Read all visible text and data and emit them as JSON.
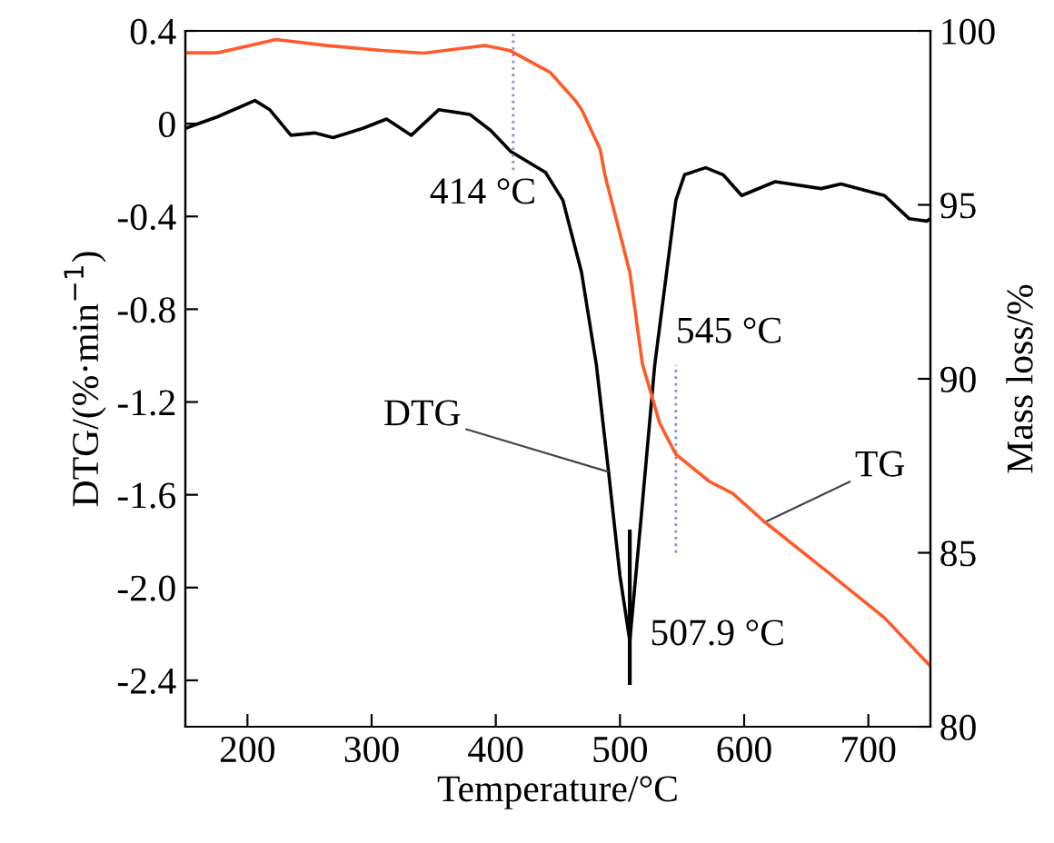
{
  "chart_data": {
    "type": "line",
    "xlabel": "Temperature/°C",
    "ylabel": "DTG/(%·min$^{−1}$)",
    "y2label": "Mass loss/%",
    "xlim": [
      150,
      750
    ],
    "xticks": [
      200,
      300,
      400,
      500,
      600,
      700
    ],
    "ylim": [
      -2.6,
      0.4
    ],
    "yticks": [
      {
        "value": 0.4,
        "label": "0.4"
      },
      0,
      {
        "value": -0.4,
        "label": "-0.4"
      },
      {
        "value": -0.8,
        "label": "-0.8"
      },
      {
        "value": -1.2,
        "label": "-1.2"
      },
      {
        "value": -1.6,
        "label": "-1.6"
      },
      {
        "value": -2.0,
        "label": "-2.0"
      },
      {
        "value": -2.4,
        "label": "-2.4"
      }
    ],
    "y2lim": [
      80,
      100
    ],
    "y2ticks": [
      80,
      85,
      90,
      95,
      100
    ],
    "grid": false,
    "legend": false,
    "marker": "none",
    "line_style": "solid",
    "series": [
      {
        "color": "#000000",
        "x": [
          150,
          176,
          206,
          218,
          235,
          254,
          269,
          293,
          312,
          332,
          354,
          379,
          396,
          412,
          440,
          454,
          469,
          481,
          491,
          500,
          507.9,
          517,
          528,
          545,
          552,
          569,
          583,
          598,
          625,
          662,
          678,
          713,
          733,
          747,
          750
        ],
        "values": [
          -0.02,
          0.03,
          0.1,
          0.06,
          -0.05,
          -0.04,
          -0.06,
          -0.02,
          0.02,
          -0.05,
          0.06,
          0.04,
          -0.03,
          -0.12,
          -0.21,
          -0.33,
          -0.64,
          -1.04,
          -1.51,
          -1.95,
          -2.23,
          -1.7,
          -1.04,
          -0.33,
          -0.22,
          -0.19,
          -0.22,
          -0.31,
          -0.25,
          -0.28,
          -0.26,
          -0.31,
          -0.41,
          -0.42,
          -0.41
        ]
      },
      {
        "color": "#ff5a28",
        "axis": "y2",
        "x": [
          150,
          176,
          223,
          264,
          308,
          342,
          391,
          411,
          444,
          464,
          469,
          484,
          488,
          508,
          518,
          532,
          545,
          572,
          591,
          616,
          664,
          713,
          750
        ],
        "values": [
          99.37,
          99.37,
          99.75,
          99.58,
          99.44,
          99.36,
          99.58,
          99.44,
          98.8,
          98.0,
          97.75,
          96.6,
          95.84,
          93.05,
          90.44,
          88.72,
          87.83,
          87.05,
          86.7,
          85.9,
          84.54,
          83.13,
          81.74
        ]
      }
    ],
    "ref_lines": [
      {
        "axis": "x",
        "value": 414,
        "label": "414 °C",
        "color": "#8a8ae0",
        "line_style": "dotted"
      },
      {
        "axis": "x",
        "value": 545,
        "label": "545 °C",
        "color": "#8a8ae0",
        "line_style": "dotted"
      }
    ],
    "annotations": [
      {
        "text": "DTG",
        "x": 490,
        "y": -1.5
      },
      {
        "text": "TG",
        "x": 616,
        "y": -1.72
      },
      {
        "text": "507.9 °C",
        "x": 507.9,
        "y": -2.23
      }
    ]
  }
}
